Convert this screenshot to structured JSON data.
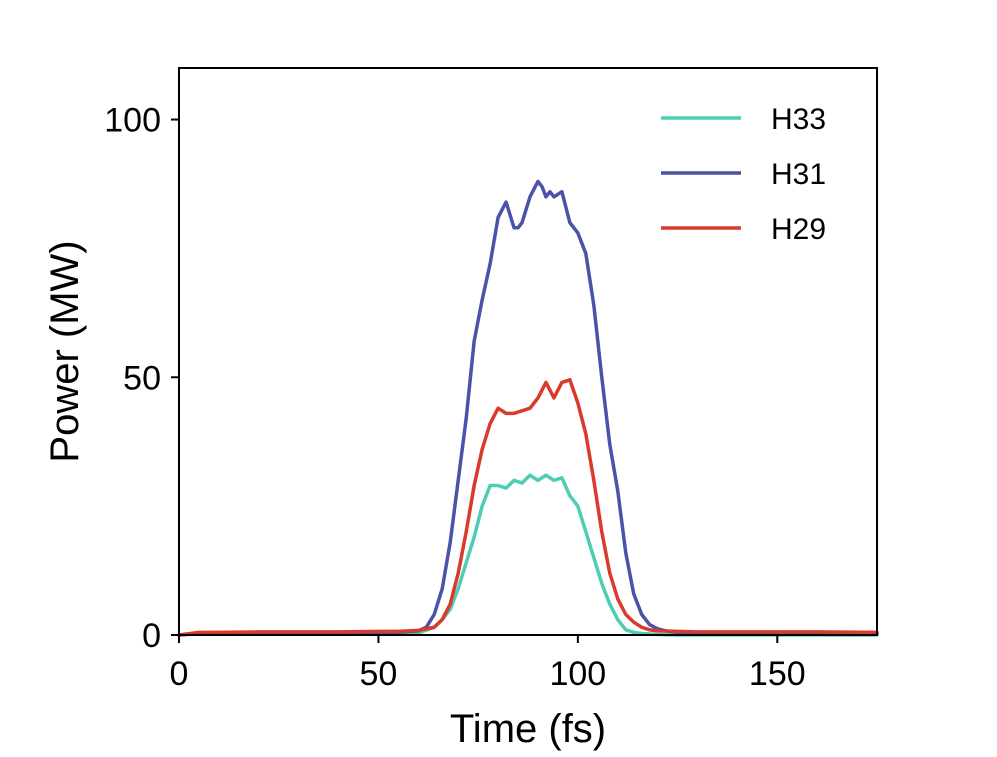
{
  "chart_data": {
    "type": "line",
    "title": "",
    "xlabel": "Time (fs)",
    "ylabel": "Power (MW)",
    "xlim": [
      0,
      175
    ],
    "ylim": [
      0,
      110
    ],
    "xticks": [
      0,
      50,
      100,
      150
    ],
    "xtick_labels": [
      "0",
      "50",
      "100",
      "150"
    ],
    "yticks": [
      0,
      50,
      100
    ],
    "ytick_labels": [
      "0",
      "50",
      "100"
    ],
    "grid": false,
    "legend_position": "top-right",
    "series": [
      {
        "name": "H33",
        "color": "#4ecdb4",
        "x": [
          0,
          5,
          10,
          20,
          30,
          40,
          50,
          55,
          60,
          64,
          66,
          68,
          70,
          72,
          74,
          76,
          78,
          80,
          82,
          84,
          86,
          88,
          90,
          92,
          94,
          96,
          98,
          100,
          102,
          104,
          106,
          108,
          110,
          112,
          114,
          116,
          118,
          120,
          125,
          130,
          140,
          150,
          160,
          175
        ],
        "values": [
          0,
          0.3,
          0.2,
          0.3,
          0.3,
          0.3,
          0.3,
          0.3,
          0.4,
          1.5,
          3,
          5,
          9,
          14,
          19,
          25,
          29,
          29,
          28.5,
          30,
          29.5,
          31,
          30,
          31,
          30,
          30.5,
          27,
          25,
          20,
          15,
          10,
          6,
          3,
          1,
          0.5,
          0.3,
          0.2,
          0.1,
          0,
          0,
          0,
          0,
          0,
          0
        ]
      },
      {
        "name": "H31",
        "color": "#4a52aa",
        "x": [
          0,
          5,
          10,
          20,
          30,
          40,
          50,
          55,
          60,
          62,
          64,
          66,
          68,
          70,
          72,
          74,
          76,
          78,
          80,
          82,
          84,
          85,
          86,
          88,
          90,
          91,
          92,
          93,
          94,
          96,
          98,
          100,
          102,
          104,
          106,
          108,
          110,
          112,
          114,
          116,
          118,
          120,
          122,
          125,
          130,
          140,
          150,
          160,
          175
        ],
        "values": [
          0,
          0.3,
          0.3,
          0.4,
          0.4,
          0.4,
          0.5,
          0.5,
          0.8,
          1.5,
          4,
          9,
          18,
          30,
          42,
          57,
          65,
          72,
          81,
          84,
          79,
          79,
          80,
          85,
          88,
          87,
          85,
          86,
          85,
          86,
          80,
          78,
          74,
          64,
          50,
          37,
          28,
          16,
          8,
          4,
          2,
          1.2,
          0.8,
          0.5,
          0.5,
          0.4,
          0.4,
          0.4,
          0.3
        ]
      },
      {
        "name": "H29",
        "color": "#d93a2b",
        "x": [
          0,
          5,
          10,
          20,
          30,
          40,
          50,
          55,
          60,
          64,
          66,
          68,
          70,
          72,
          74,
          76,
          78,
          80,
          82,
          84,
          86,
          88,
          90,
          92,
          94,
          96,
          98,
          100,
          102,
          104,
          106,
          108,
          110,
          112,
          114,
          116,
          118,
          120,
          125,
          130,
          140,
          150,
          160,
          175
        ],
        "values": [
          0,
          0.5,
          0.5,
          0.6,
          0.6,
          0.6,
          0.7,
          0.7,
          0.9,
          1.5,
          3,
          6,
          12,
          20,
          29,
          36,
          41,
          44,
          43,
          43,
          43.5,
          44,
          46,
          49,
          46,
          49,
          49.5,
          45,
          39,
          30,
          20,
          12,
          7,
          4,
          2.5,
          1.5,
          1,
          0.8,
          0.7,
          0.6,
          0.6,
          0.6,
          0.6,
          0.5
        ]
      }
    ]
  }
}
